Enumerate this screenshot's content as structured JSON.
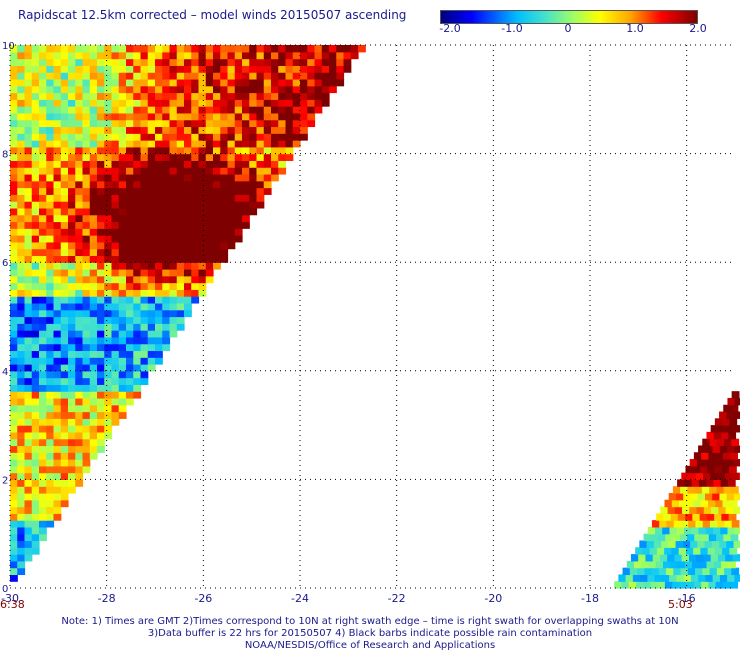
{
  "title": "Rapidscat 12.5km corrected – model winds 20150507 ascending",
  "colorbar": {
    "labels": [
      "-2.0",
      "-1.0",
      "0",
      "1.0",
      "2.0"
    ],
    "min": -2.0,
    "max": 2.0
  },
  "chart_data": {
    "type": "heatmap",
    "title": "Rapidscat 12.5km corrected – model winds 20150507 ascending",
    "xlim": [
      -30,
      -15
    ],
    "ylim": [
      0,
      10
    ],
    "xticks": [
      -30,
      -28,
      -26,
      -24,
      -22,
      -20,
      -18,
      -16
    ],
    "yticks": [
      0,
      2,
      4,
      6,
      8,
      10
    ],
    "xtick_labels": [
      "-30",
      "-28",
      "-26",
      "-24",
      "-22",
      "-20",
      "-18",
      "-16"
    ],
    "ytick_labels": [
      "0",
      "2",
      "4",
      "6",
      "8",
      "10"
    ],
    "grid": true,
    "value_range": [
      -2.0,
      2.0
    ],
    "swaths": [
      {
        "time_label": "6:38",
        "time_x": -30,
        "region": "left triangle: x from -30 to about -22.7 at y=10, narrowing to -30 at y=0"
      },
      {
        "time_label": "5:03",
        "time_x": -16,
        "region": "right triangle: x from about -17.5 to -15 at y=0, narrowing to -15 at about y=3.6"
      }
    ]
  },
  "footer": {
    "line1": "Note: 1) Times are GMT 2)Times correspond to 10N at right swath edge – time is right swath for overlapping swaths at 10N",
    "line2": "3)Data buffer is 22 hrs for 20150507 4) Black barbs indicate possible rain contamination",
    "line3": "NOAA/NESDIS/Office of Research and Applications"
  }
}
